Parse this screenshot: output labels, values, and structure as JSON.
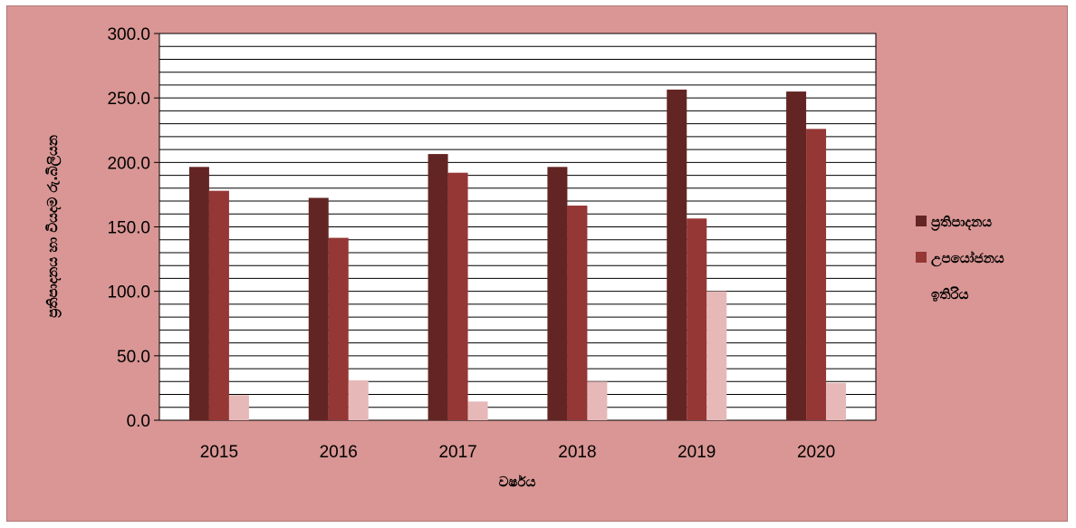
{
  "chart_data": {
    "type": "bar",
    "categories": [
      "2015",
      "2016",
      "2017",
      "2018",
      "2019",
      "2020"
    ],
    "series": [
      {
        "name": "ප්‍රතිපාදනය",
        "values": [
          196.5,
          172.5,
          206.5,
          196.5,
          256.5,
          255.0
        ],
        "color": "#632523"
      },
      {
        "name": "උපයෝජනය",
        "values": [
          178.0,
          141.5,
          192.0,
          166.5,
          156.5,
          226.0
        ],
        "color": "#953735"
      },
      {
        "name": "ඉතිරිය",
        "values": [
          19.5,
          31.0,
          14.5,
          30.0,
          100.0,
          29.0
        ],
        "color": "#e6b9b8"
      }
    ],
    "ylim": [
      0,
      300
    ],
    "y_ticks": [
      "0.0",
      "50.0",
      "100.0",
      "150.0",
      "200.0",
      "250.0",
      "300.0"
    ],
    "y_minor_step": 10,
    "xlabel": "වර්ෂය",
    "ylabel": "ප්‍රතිපාදනය හා වියදම රු.බිලියන",
    "legend": "right",
    "grid": true
  }
}
